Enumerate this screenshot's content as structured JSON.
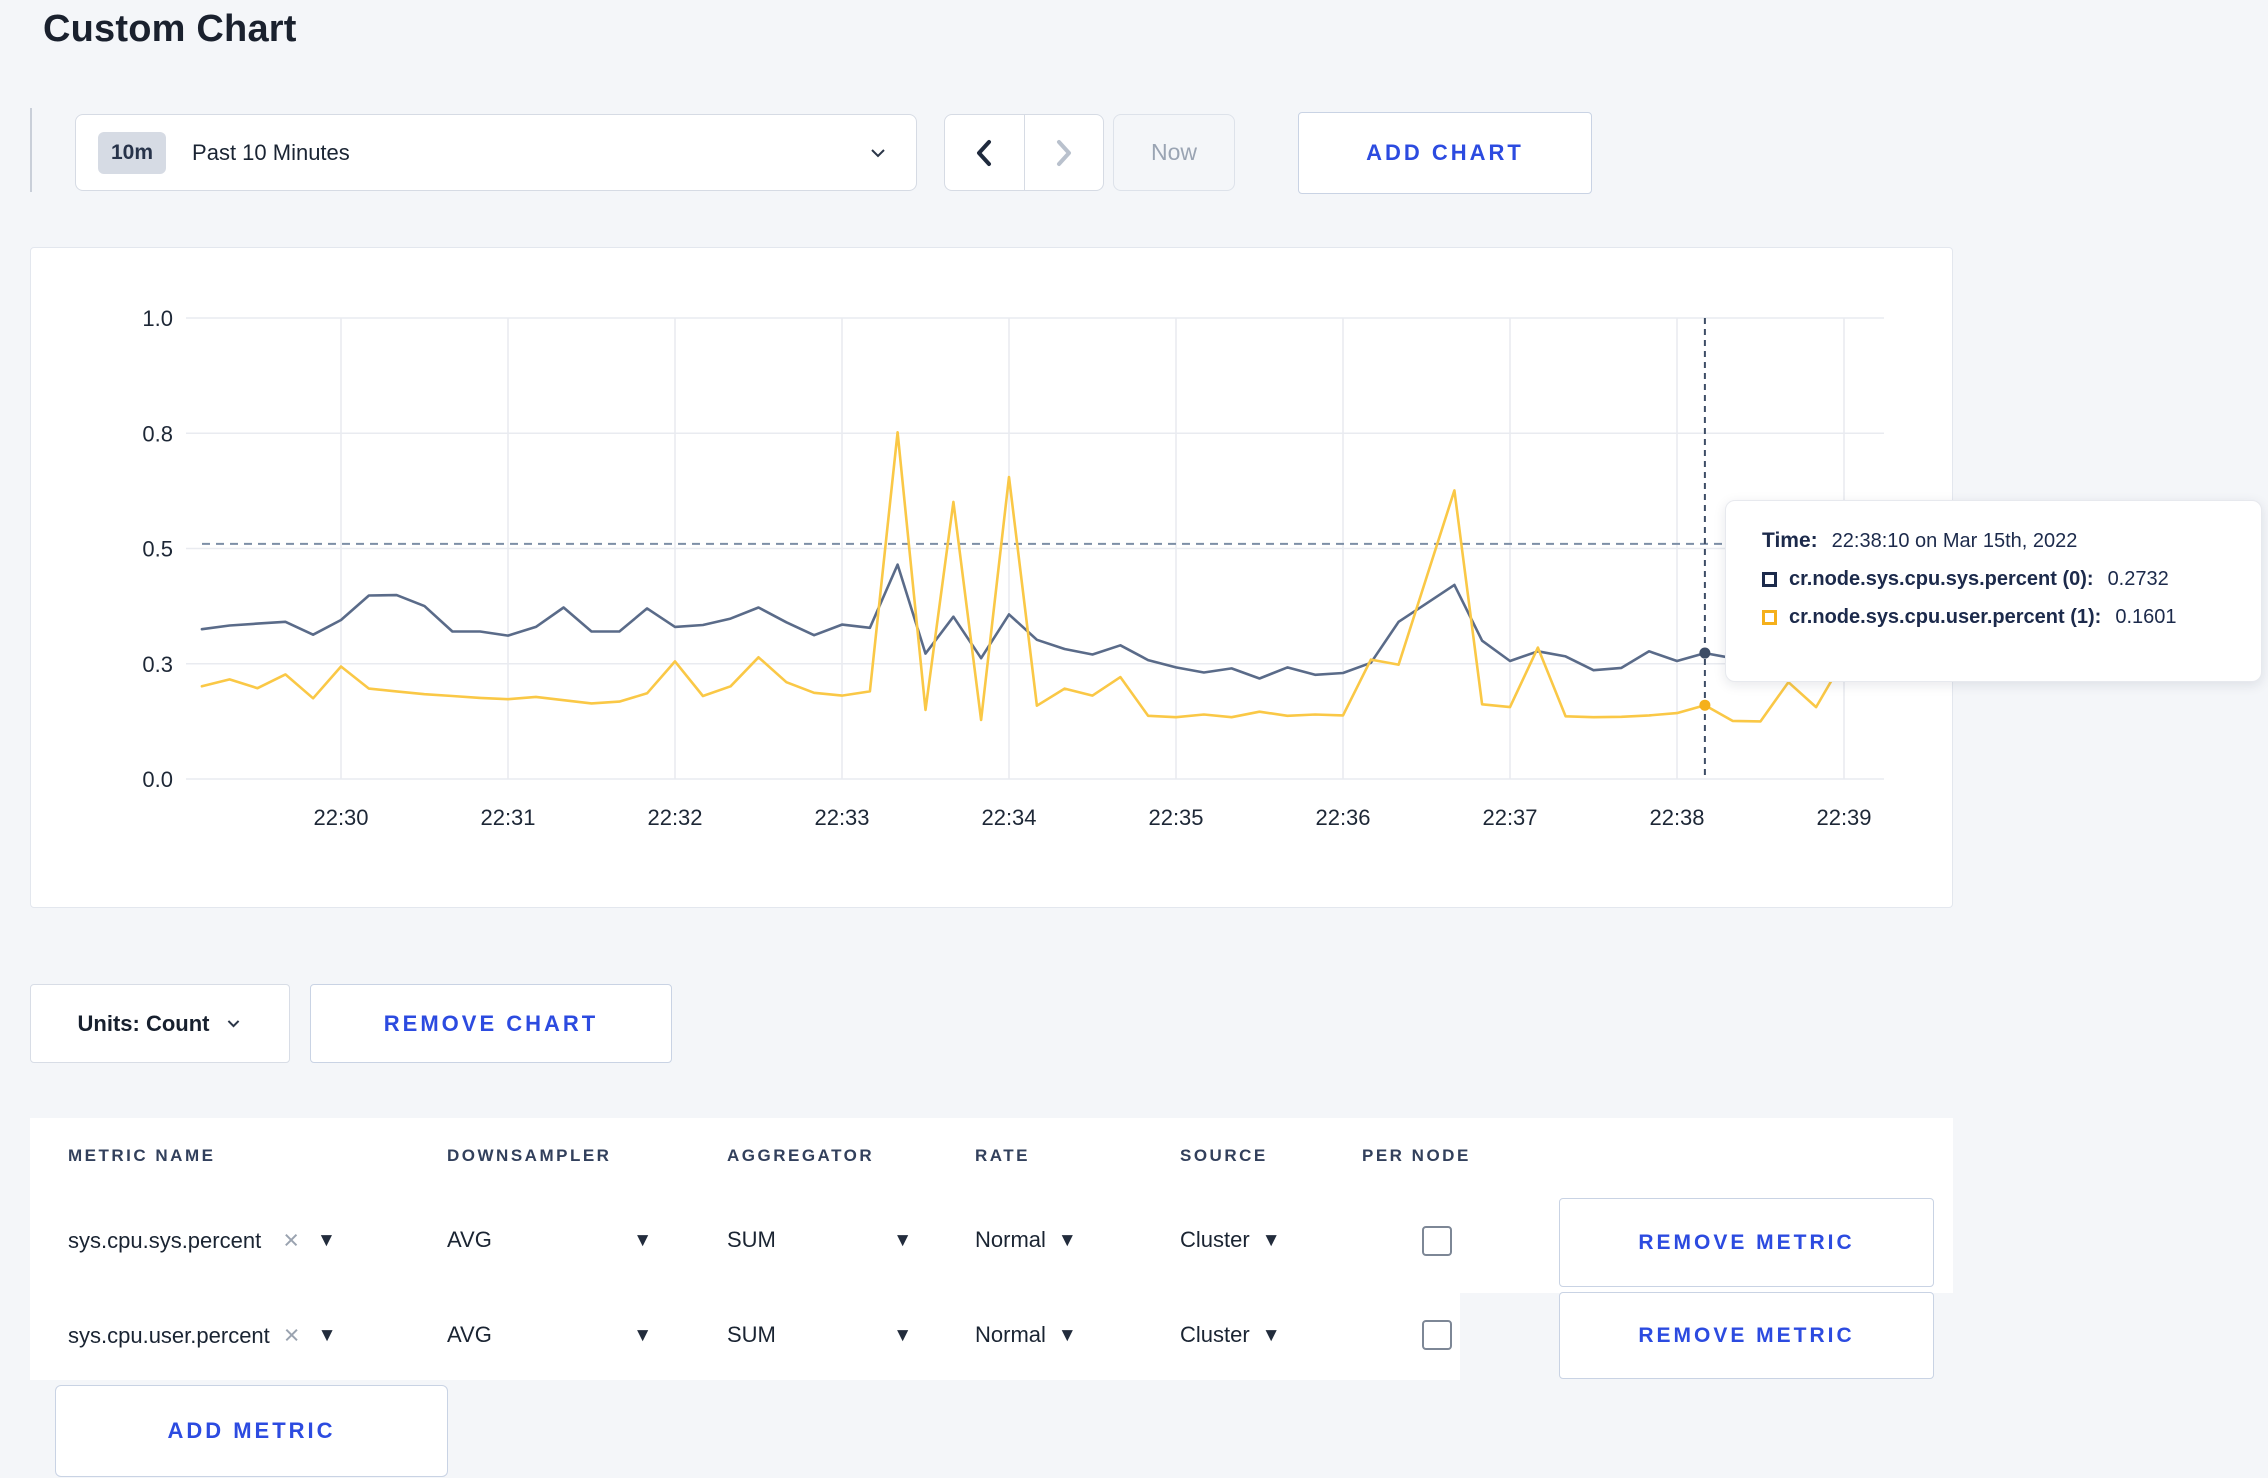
{
  "page": {
    "title": "Custom Chart"
  },
  "toolbar": {
    "range_badge": "10m",
    "range_label": "Past 10 Minutes",
    "now_label": "Now",
    "add_chart_label": "ADD CHART"
  },
  "chart_data": {
    "type": "line",
    "x_tick_minutes": [
      30,
      31,
      32,
      33,
      34,
      35,
      36,
      37,
      38,
      39
    ],
    "x_tick_labels": [
      "22:30",
      "22:31",
      "22:32",
      "22:33",
      "22:34",
      "22:35",
      "22:36",
      "22:37",
      "22:38",
      "22:39"
    ],
    "y_ticks": [
      {
        "value": 0.0,
        "label": "0.0"
      },
      {
        "value": 0.25,
        "label": "0.3"
      },
      {
        "value": 0.5,
        "label": "0.5"
      },
      {
        "value": 0.75,
        "label": "0.8"
      },
      {
        "value": 1.0,
        "label": "1.0"
      }
    ],
    "ylim": [
      0,
      1
    ],
    "grid_on": true,
    "grid_color": "#e9ebf0",
    "threshold_value": 0.51,
    "threshold_color": "#7d8fa6",
    "crosshair": {
      "x_minute": 38.167,
      "color": "#3d4d66",
      "points": [
        {
          "value": 0.2732,
          "color": "#3d4d66"
        },
        {
          "value": 0.1601,
          "color": "#f5b01b"
        }
      ]
    },
    "x_minutes": [
      29.167,
      29.333,
      29.5,
      29.667,
      29.833,
      30,
      30.167,
      30.333,
      30.5,
      30.667,
      30.833,
      31,
      31.167,
      31.333,
      31.5,
      31.667,
      31.833,
      32,
      32.167,
      32.333,
      32.5,
      32.667,
      32.833,
      33,
      33.167,
      33.333,
      33.5,
      33.667,
      33.833,
      34,
      34.167,
      34.333,
      34.5,
      34.667,
      34.833,
      35,
      35.167,
      35.333,
      35.5,
      35.667,
      35.833,
      36,
      36.167,
      36.333,
      36.5,
      36.667,
      36.833,
      37,
      37.167,
      37.333,
      37.5,
      37.667,
      37.833,
      38,
      38.167,
      38.333,
      38.5,
      38.667,
      38.833,
      39,
      39.167
    ],
    "series": [
      {
        "name": "cr.node.sys.cpu.sys.percent",
        "color": "#5a6b89",
        "values": [
          0.325,
          0.333,
          0.337,
          0.341,
          0.313,
          0.345,
          0.398,
          0.399,
          0.375,
          0.32,
          0.32,
          0.311,
          0.33,
          0.372,
          0.32,
          0.32,
          0.37,
          0.33,
          0.334,
          0.348,
          0.372,
          0.34,
          0.312,
          0.335,
          0.328,
          0.465,
          0.272,
          0.352,
          0.262,
          0.357,
          0.302,
          0.282,
          0.27,
          0.29,
          0.258,
          0.242,
          0.231,
          0.24,
          0.218,
          0.242,
          0.226,
          0.23,
          0.252,
          0.341,
          0.381,
          0.421,
          0.3,
          0.256,
          0.277,
          0.266,
          0.236,
          0.241,
          0.277,
          0.256,
          0.273,
          0.262,
          0.27,
          0.277,
          0.266,
          0.272,
          0.268
        ]
      },
      {
        "name": "cr.node.sys.cpu.user.percent",
        "color": "#fac846",
        "values": [
          0.201,
          0.216,
          0.197,
          0.227,
          0.175,
          0.244,
          0.196,
          0.19,
          0.184,
          0.18,
          0.176,
          0.173,
          0.178,
          0.171,
          0.164,
          0.168,
          0.186,
          0.255,
          0.18,
          0.201,
          0.264,
          0.21,
          0.187,
          0.181,
          0.19,
          0.752,
          0.15,
          0.601,
          0.128,
          0.655,
          0.159,
          0.196,
          0.181,
          0.221,
          0.137,
          0.134,
          0.14,
          0.134,
          0.146,
          0.137,
          0.14,
          0.138,
          0.259,
          0.248,
          0.437,
          0.626,
          0.162,
          0.156,
          0.285,
          0.136,
          0.134,
          0.135,
          0.138,
          0.143,
          0.16,
          0.126,
          0.125,
          0.21,
          0.156,
          0.26,
          0.221
        ]
      }
    ]
  },
  "tooltip": {
    "time_label": "Time:",
    "time_value": "22:38:10 on Mar 15th, 2022",
    "series": [
      {
        "name": "cr.node.sys.cpu.sys.percent (0):",
        "value": "0.2732",
        "color": "#1c2a4b"
      },
      {
        "name": "cr.node.sys.cpu.user.percent (1):",
        "value": "0.1601",
        "color": "#f5b01b"
      }
    ]
  },
  "units_row": {
    "units_label": "Units: Count",
    "remove_chart_label": "REMOVE CHART"
  },
  "metrics_table": {
    "headers": [
      "METRIC NAME",
      "DOWNSAMPLER",
      "AGGREGATOR",
      "RATE",
      "SOURCE",
      "PER NODE"
    ],
    "rows": [
      {
        "metric": "sys.cpu.sys.percent",
        "downsampler": "AVG",
        "aggregator": "SUM",
        "rate": "Normal",
        "source": "Cluster",
        "per_node_checked": false,
        "remove_label": "REMOVE METRIC"
      },
      {
        "metric": "sys.cpu.user.percent",
        "downsampler": "AVG",
        "aggregator": "SUM",
        "rate": "Normal",
        "source": "Cluster",
        "per_node_checked": false,
        "remove_label": "REMOVE METRIC"
      }
    ],
    "add_metric_label": "ADD METRIC"
  }
}
